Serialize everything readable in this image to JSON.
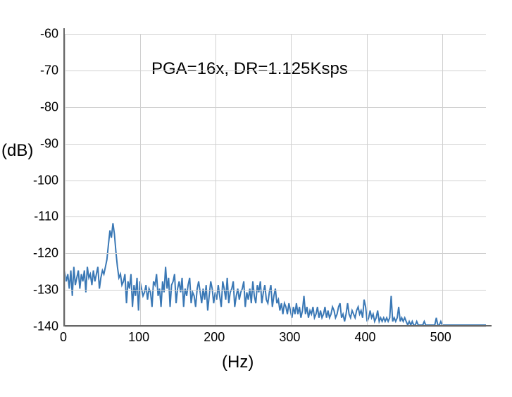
{
  "chart": {
    "type": "line",
    "title": "PGA=16x, DR=1.125Ksps",
    "title_fontsize": 24,
    "xlabel": "(Hz)",
    "ylabel": "(dB)",
    "label_fontsize": 24,
    "tick_fontsize": 18,
    "xlim": [
      0,
      560
    ],
    "ylim": [
      -140,
      -60
    ],
    "xtick_step": 100,
    "xticks": [
      0,
      100,
      200,
      300,
      400,
      500
    ],
    "ytick_step": 10,
    "yticks": [
      -60,
      -70,
      -80,
      -90,
      -100,
      -110,
      -120,
      -130,
      -140
    ],
    "line_color": "#3a78b5",
    "line_width": 2,
    "background_color": "#ffffff",
    "grid_color": "#d0d0d0",
    "grid": true,
    "data": {
      "x": [
        0,
        2,
        4,
        6,
        8,
        10,
        12,
        14,
        16,
        18,
        20,
        22,
        24,
        26,
        28,
        30,
        32,
        34,
        36,
        38,
        40,
        42,
        44,
        46,
        48,
        50,
        52,
        54,
        56,
        58,
        60,
        62,
        64,
        66,
        68,
        70,
        72,
        74,
        76,
        78,
        80,
        82,
        84,
        86,
        88,
        90,
        92,
        94,
        96,
        98,
        100,
        102,
        104,
        106,
        108,
        110,
        112,
        114,
        116,
        118,
        120,
        122,
        124,
        126,
        128,
        130,
        132,
        134,
        136,
        138,
        140,
        142,
        144,
        146,
        148,
        150,
        152,
        154,
        156,
        158,
        160,
        162,
        164,
        166,
        168,
        170,
        172,
        174,
        176,
        178,
        180,
        182,
        184,
        186,
        188,
        190,
        192,
        194,
        196,
        198,
        200,
        202,
        204,
        206,
        208,
        210,
        212,
        214,
        216,
        218,
        220,
        222,
        224,
        226,
        228,
        230,
        232,
        234,
        236,
        238,
        240,
        242,
        244,
        246,
        248,
        250,
        252,
        254,
        256,
        258,
        260,
        262,
        264,
        266,
        268,
        270,
        272,
        274,
        276,
        278,
        280,
        282,
        284,
        286,
        288,
        290,
        292,
        294,
        296,
        298,
        300,
        302,
        304,
        306,
        308,
        310,
        312,
        314,
        316,
        318,
        320,
        322,
        324,
        326,
        328,
        330,
        332,
        334,
        336,
        338,
        340,
        342,
        344,
        346,
        348,
        350,
        352,
        354,
        356,
        358,
        360,
        362,
        364,
        366,
        368,
        370,
        372,
        374,
        376,
        378,
        380,
        382,
        384,
        386,
        388,
        390,
        392,
        394,
        396,
        398,
        400,
        402,
        404,
        406,
        408,
        410,
        412,
        414,
        416,
        418,
        420,
        422,
        424,
        426,
        428,
        430,
        432,
        434,
        436,
        438,
        440,
        442,
        444,
        446,
        448,
        450,
        452,
        454,
        456,
        458,
        460,
        462,
        464,
        466,
        468,
        470,
        472,
        474,
        476,
        478,
        480,
        482,
        484,
        486,
        488,
        490,
        492,
        494,
        496,
        498,
        500,
        502,
        504,
        506,
        508,
        510,
        512,
        514,
        516,
        518,
        520,
        522,
        524,
        526,
        528,
        530,
        532,
        534,
        536,
        538,
        540,
        542,
        544,
        546,
        548,
        550,
        552,
        554,
        556,
        558,
        560
      ],
      "y": [
        -125,
        -128,
        -126,
        -130,
        -125,
        -132,
        -124,
        -129,
        -127,
        -125,
        -130,
        -126,
        -128,
        -125,
        -131,
        -124,
        -127,
        -126,
        -129,
        -125,
        -128,
        -126,
        -124,
        -130,
        -127,
        -125,
        -126,
        -124,
        -122,
        -118,
        -114,
        -116,
        -112,
        -115,
        -120,
        -124,
        -127,
        -126,
        -129,
        -128,
        -126,
        -134,
        -128,
        -130,
        -126,
        -135,
        -129,
        -132,
        -127,
        -136,
        -128,
        -130,
        -132,
        -131,
        -129,
        -133,
        -130,
        -131,
        -135,
        -128,
        -129,
        -126,
        -132,
        -130,
        -135,
        -128,
        -131,
        -124,
        -130,
        -127,
        -135,
        -129,
        -128,
        -126,
        -134,
        -130,
        -128,
        -131,
        -127,
        -135,
        -130,
        -132,
        -129,
        -127,
        -134,
        -131,
        -132,
        -135,
        -130,
        -128,
        -131,
        -134,
        -130,
        -133,
        -129,
        -136,
        -132,
        -128,
        -130,
        -134,
        -131,
        -133,
        -129,
        -132,
        -135,
        -128,
        -130,
        -133,
        -127,
        -134,
        -131,
        -130,
        -128,
        -135,
        -132,
        -130,
        -133,
        -131,
        -130,
        -128,
        -135,
        -131,
        -133,
        -130,
        -134,
        -128,
        -132,
        -134,
        -129,
        -131,
        -128,
        -134,
        -131,
        -129,
        -133,
        -134,
        -131,
        -129,
        -135,
        -132,
        -130,
        -134,
        -133,
        -136,
        -134,
        -137,
        -134,
        -135,
        -137,
        -134,
        -136,
        -138,
        -135,
        -137,
        -134,
        -137,
        -135,
        -138,
        -136,
        -132,
        -137,
        -135,
        -138,
        -136,
        -137,
        -135,
        -138,
        -137,
        -135,
        -138,
        -136,
        -138,
        -137,
        -135,
        -138,
        -136,
        -138,
        -137,
        -135,
        -136,
        -138,
        -137,
        -135,
        -134,
        -138,
        -137,
        -139,
        -137,
        -134,
        -137,
        -138,
        -136,
        -137,
        -138,
        -136,
        -135,
        -137,
        -136,
        -138,
        -133,
        -135,
        -139,
        -138,
        -136,
        -138,
        -137,
        -139,
        -138,
        -136,
        -139,
        -138,
        -139,
        -138,
        -139,
        -138,
        -139,
        -138,
        -132,
        -139,
        -138,
        -139,
        -138,
        -135,
        -139,
        -138,
        -139,
        -138,
        -139,
        -140,
        -139,
        -140,
        -139,
        -140,
        -140,
        -139,
        -140,
        -140,
        -140,
        -140,
        -139,
        -140,
        -140,
        -140,
        -140,
        -140,
        -140,
        -140,
        -138,
        -140,
        -140,
        -139,
        -140,
        -140,
        -140,
        -140,
        -140,
        -140,
        -140,
        -140,
        -140,
        -140,
        -140,
        -140,
        -140,
        -140,
        -140,
        -140,
        -140,
        -140,
        -140,
        -140,
        -140,
        -140,
        -140,
        -140,
        -140,
        -140,
        -140,
        -140,
        -140,
        -140
      ]
    }
  }
}
